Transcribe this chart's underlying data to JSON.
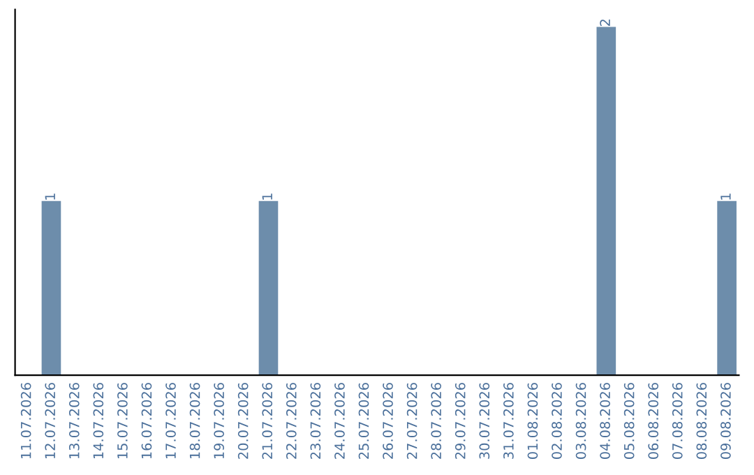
{
  "chart_data": {
    "type": "bar",
    "categories": [
      "11.07.2026",
      "12.07.2026",
      "13.07.2026",
      "14.07.2026",
      "15.07.2026",
      "16.07.2026",
      "17.07.2026",
      "18.07.2026",
      "19.07.2026",
      "20.07.2026",
      "21.07.2026",
      "22.07.2026",
      "23.07.2026",
      "24.07.2026",
      "25.07.2026",
      "26.07.2026",
      "27.07.2026",
      "28.07.2026",
      "29.07.2026",
      "30.07.2026",
      "31.07.2026",
      "01.08.2026",
      "02.08.2026",
      "03.08.2026",
      "04.08.2026",
      "05.08.2026",
      "06.08.2026",
      "07.08.2026",
      "08.08.2026",
      "09.08.2026"
    ],
    "values": [
      0,
      1,
      0,
      0,
      0,
      0,
      0,
      0,
      0,
      0,
      1,
      0,
      0,
      0,
      0,
      0,
      0,
      0,
      0,
      0,
      0,
      0,
      0,
      0,
      2,
      0,
      0,
      0,
      0,
      1
    ],
    "value_labels": [
      null,
      "1",
      null,
      null,
      null,
      null,
      null,
      null,
      null,
      null,
      "1",
      null,
      null,
      null,
      null,
      null,
      null,
      null,
      null,
      null,
      null,
      null,
      null,
      null,
      "2",
      null,
      null,
      null,
      null,
      "1"
    ],
    "color": "#6d8dab",
    "tick_labels": "x",
    "grid": false,
    "legend": false
  }
}
